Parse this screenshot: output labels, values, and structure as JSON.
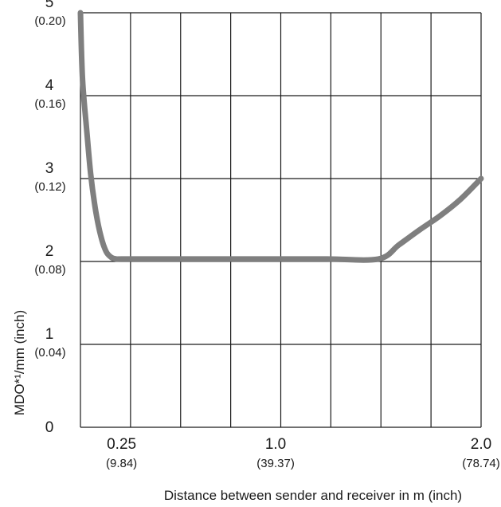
{
  "chart_data": {
    "type": "line",
    "xlabel": "Distance between sender and receiver in m (inch)",
    "ylabel": "MDO*¹/mm (inch)",
    "xlim": [
      0.05,
      2.0
    ],
    "ylim": [
      0,
      5
    ],
    "grid": true,
    "x_ticks": [
      {
        "value": 0.25,
        "label": "0.25",
        "sub": "(9.84)"
      },
      {
        "value": 1.0,
        "label": "1.0",
        "sub": "(39.37)"
      },
      {
        "value": 2.0,
        "label": "2.0",
        "sub": "(78.74)"
      }
    ],
    "y_ticks": [
      {
        "value": 0,
        "label": "0",
        "sub": ""
      },
      {
        "value": 1,
        "label": "1",
        "sub": "(0.04)"
      },
      {
        "value": 2,
        "label": "2",
        "sub": "(0.08)"
      },
      {
        "value": 3,
        "label": "3",
        "sub": "(0.12)"
      },
      {
        "value": 4,
        "label": "4",
        "sub": "(0.16)"
      },
      {
        "value": 5,
        "label": "5",
        "sub": "(0.20)"
      }
    ],
    "series": [
      {
        "color": "#7f7f7f",
        "x": [
          0.05,
          0.06,
          0.08,
          0.1,
          0.125,
          0.15,
          0.175,
          0.2,
          0.225,
          0.25,
          0.5,
          0.75,
          1.0,
          1.25,
          1.5,
          1.6,
          1.7,
          1.8,
          1.9,
          2.0
        ],
        "y": [
          5.0,
          4.2,
          3.6,
          3.05,
          2.6,
          2.3,
          2.12,
          2.05,
          2.03,
          2.03,
          2.03,
          2.03,
          2.03,
          2.03,
          2.03,
          2.2,
          2.38,
          2.55,
          2.75,
          3.0
        ]
      }
    ]
  }
}
